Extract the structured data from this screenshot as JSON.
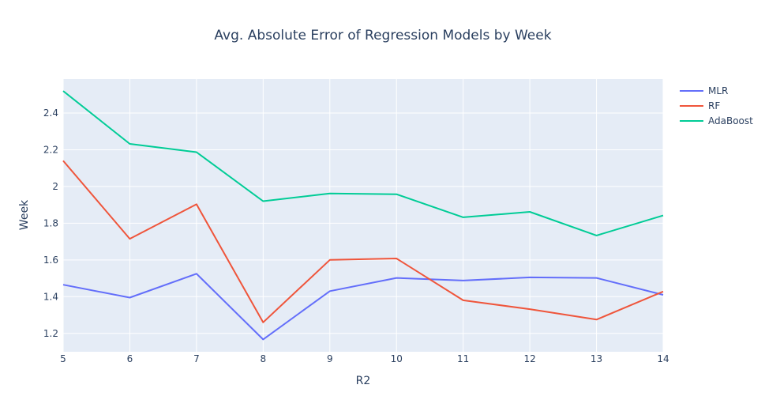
{
  "chart_data": {
    "type": "line",
    "title": "Avg. Absolute Error of Regression Models by Week",
    "xlabel": "R2",
    "ylabel": "Week",
    "x": [
      5,
      6,
      7,
      8,
      9,
      10,
      11,
      12,
      13,
      14
    ],
    "xlim": [
      5,
      14
    ],
    "ylim": [
      1.1,
      2.585
    ],
    "yticks": [
      1.2,
      1.4,
      1.6,
      1.8,
      2,
      2.2,
      2.4
    ],
    "grid": true,
    "legend_position": "top-right",
    "background": "#e5ecf6",
    "series": [
      {
        "name": "MLR",
        "color": "#636efa",
        "values": [
          1.465,
          1.395,
          1.525,
          1.167,
          1.43,
          1.502,
          1.488,
          1.505,
          1.502,
          1.41
        ]
      },
      {
        "name": "RF",
        "color": "#ef553b",
        "values": [
          2.14,
          1.715,
          1.903,
          1.26,
          1.6,
          1.608,
          1.38,
          1.332,
          1.275,
          1.428
        ]
      },
      {
        "name": "AdaBoost",
        "color": "#00cc96",
        "values": [
          2.52,
          2.232,
          2.187,
          1.92,
          1.962,
          1.958,
          1.832,
          1.862,
          1.733,
          1.842
        ]
      }
    ]
  }
}
